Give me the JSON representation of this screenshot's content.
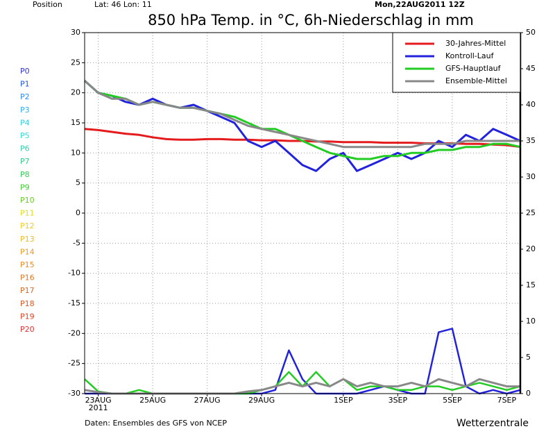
{
  "chart_data": {
    "type": "line",
    "position_label": "Position",
    "location": "Lat: 46  Lon: 11",
    "run": "Mon,22AUG2011 12Z",
    "title": "850 hPa Temp. in °C, 6h-Niederschlag in mm",
    "footer_left": "Daten: Ensembles des GFS von NCEP",
    "footer_right": "Wetterzentrale",
    "x_year": "2011",
    "x": [
      0,
      0.5,
      1,
      1.5,
      2,
      2.5,
      3,
      3.5,
      4,
      4.5,
      5,
      5.5,
      6,
      6.5,
      7,
      7.5,
      8,
      8.5,
      9,
      9.5,
      10,
      10.5,
      11,
      11.5,
      12,
      12.5,
      13,
      13.5,
      14,
      14.5,
      15,
      15.5,
      16
    ],
    "xlim": [
      0,
      16
    ],
    "xticks": [
      {
        "value": 0.5,
        "label": "23AUG"
      },
      {
        "value": 2.5,
        "label": "25AUG"
      },
      {
        "value": 4.5,
        "label": "27AUG"
      },
      {
        "value": 6.5,
        "label": "29AUG"
      },
      {
        "value": 9.5,
        "label": "1SEP"
      },
      {
        "value": 11.5,
        "label": "3SEP"
      },
      {
        "value": 13.5,
        "label": "5SEP"
      },
      {
        "value": 15.5,
        "label": "7SEP"
      }
    ],
    "ylim": [
      -30,
      30
    ],
    "yticks": [
      -30,
      -25,
      -20,
      -15,
      -10,
      -5,
      0,
      5,
      10,
      15,
      20,
      25,
      30
    ],
    "y2lim": [
      0,
      50
    ],
    "y2ticks": [
      0,
      5,
      10,
      15,
      20,
      25,
      30,
      35,
      40,
      45,
      50
    ],
    "grid": true,
    "series": [
      {
        "name": "30-Jahres-Mittel",
        "color": "#e41a1c",
        "width": 3,
        "values": [
          14,
          13.8,
          13.5,
          13.2,
          13,
          12.6,
          12.3,
          12.2,
          12.2,
          12.3,
          12.3,
          12.2,
          12.2,
          12.1,
          12.1,
          12,
          12,
          11.9,
          11.9,
          11.8,
          11.8,
          11.8,
          11.7,
          11.7,
          11.7,
          11.6,
          11.6,
          11.6,
          11.5,
          11.5,
          11.4,
          11.3,
          11
        ]
      },
      {
        "name": "Kontroll-Lauf",
        "color": "#2222dd",
        "width": 3,
        "values": [
          22,
          20,
          19.5,
          18.5,
          18,
          19,
          18,
          17.5,
          18,
          17,
          16,
          15,
          12,
          11,
          12,
          10,
          8,
          7,
          9,
          10,
          7,
          8,
          9,
          10,
          9,
          10,
          12,
          11,
          13,
          12,
          14,
          13,
          12
        ]
      },
      {
        "name": "GFS-Hauptlauf",
        "color": "#22cc22",
        "width": 3,
        "values": [
          22,
          20,
          19.5,
          19,
          18,
          18.5,
          18,
          17.5,
          17.5,
          17,
          16.5,
          16,
          15,
          14,
          14,
          13,
          12,
          11,
          10,
          9.5,
          9,
          9,
          9.5,
          9.5,
          10,
          10,
          10.5,
          10.5,
          11,
          11,
          11.5,
          11.5,
          11
        ]
      },
      {
        "name": "Ensemble-Mittel",
        "color": "#888888",
        "width": 3,
        "values": [
          22,
          20,
          19,
          19,
          18,
          18.5,
          18,
          17.5,
          17.5,
          17,
          16.5,
          15.5,
          14.5,
          14,
          13.5,
          13,
          12.5,
          12,
          11.5,
          11,
          11,
          11,
          11,
          11,
          11,
          11.5,
          11.5,
          11.5,
          12,
          12,
          12,
          12,
          12
        ]
      },
      {
        "color": "#2222dd",
        "width": 2.5,
        "axis": "y2",
        "values": [
          0,
          0,
          0,
          0,
          0,
          0,
          0,
          0,
          0,
          0,
          0,
          0,
          0,
          0,
          0.5,
          6,
          2,
          0,
          0,
          0,
          0,
          0.5,
          1,
          0.5,
          0,
          0,
          8.5,
          9,
          1,
          0,
          0.5,
          0,
          0.5
        ]
      },
      {
        "color": "#22cc22",
        "width": 2.5,
        "axis": "y2",
        "values": [
          2,
          0.3,
          0,
          0,
          0.5,
          0,
          0,
          0,
          0,
          0,
          0,
          0,
          0,
          0.5,
          1,
          3,
          1,
          3,
          1,
          2,
          0.5,
          1,
          1,
          0.5,
          0.5,
          1,
          1,
          0.5,
          1,
          1.5,
          1,
          0.5,
          1
        ]
      },
      {
        "color": "#888888",
        "width": 3,
        "axis": "y2",
        "values": [
          0.5,
          0.2,
          0,
          0,
          0,
          0,
          0,
          0,
          0,
          0,
          0,
          0,
          0.3,
          0.5,
          1,
          1.5,
          1,
          1.5,
          1,
          2,
          1,
          1.5,
          1,
          1,
          1.5,
          1,
          2,
          1.5,
          1,
          2,
          1.5,
          1,
          1
        ]
      }
    ],
    "member_legend": [
      {
        "name": "P0",
        "color": "#3333cc"
      },
      {
        "name": "P1",
        "color": "#2255dd"
      },
      {
        "name": "P2",
        "color": "#3388ee"
      },
      {
        "name": "P3",
        "color": "#33aaee"
      },
      {
        "name": "P4",
        "color": "#33ccdd"
      },
      {
        "name": "P5",
        "color": "#33dddd"
      },
      {
        "name": "P6",
        "color": "#33ccaa"
      },
      {
        "name": "P7",
        "color": "#33cc88"
      },
      {
        "name": "P8",
        "color": "#33cc55"
      },
      {
        "name": "P9",
        "color": "#44cc33"
      },
      {
        "name": "P10",
        "color": "#66cc22"
      },
      {
        "name": "P11",
        "color": "#dddd22"
      },
      {
        "name": "P12",
        "color": "#eecc22"
      },
      {
        "name": "P13",
        "color": "#eebb22"
      },
      {
        "name": "P14",
        "color": "#ee9922"
      },
      {
        "name": "P15",
        "color": "#ee8822"
      },
      {
        "name": "P16",
        "color": "#dd7722"
      },
      {
        "name": "P17",
        "color": "#dd6622"
      },
      {
        "name": "P18",
        "color": "#dd5522"
      },
      {
        "name": "P19",
        "color": "#dd4422"
      },
      {
        "name": "P20",
        "color": "#dd3333"
      }
    ]
  }
}
